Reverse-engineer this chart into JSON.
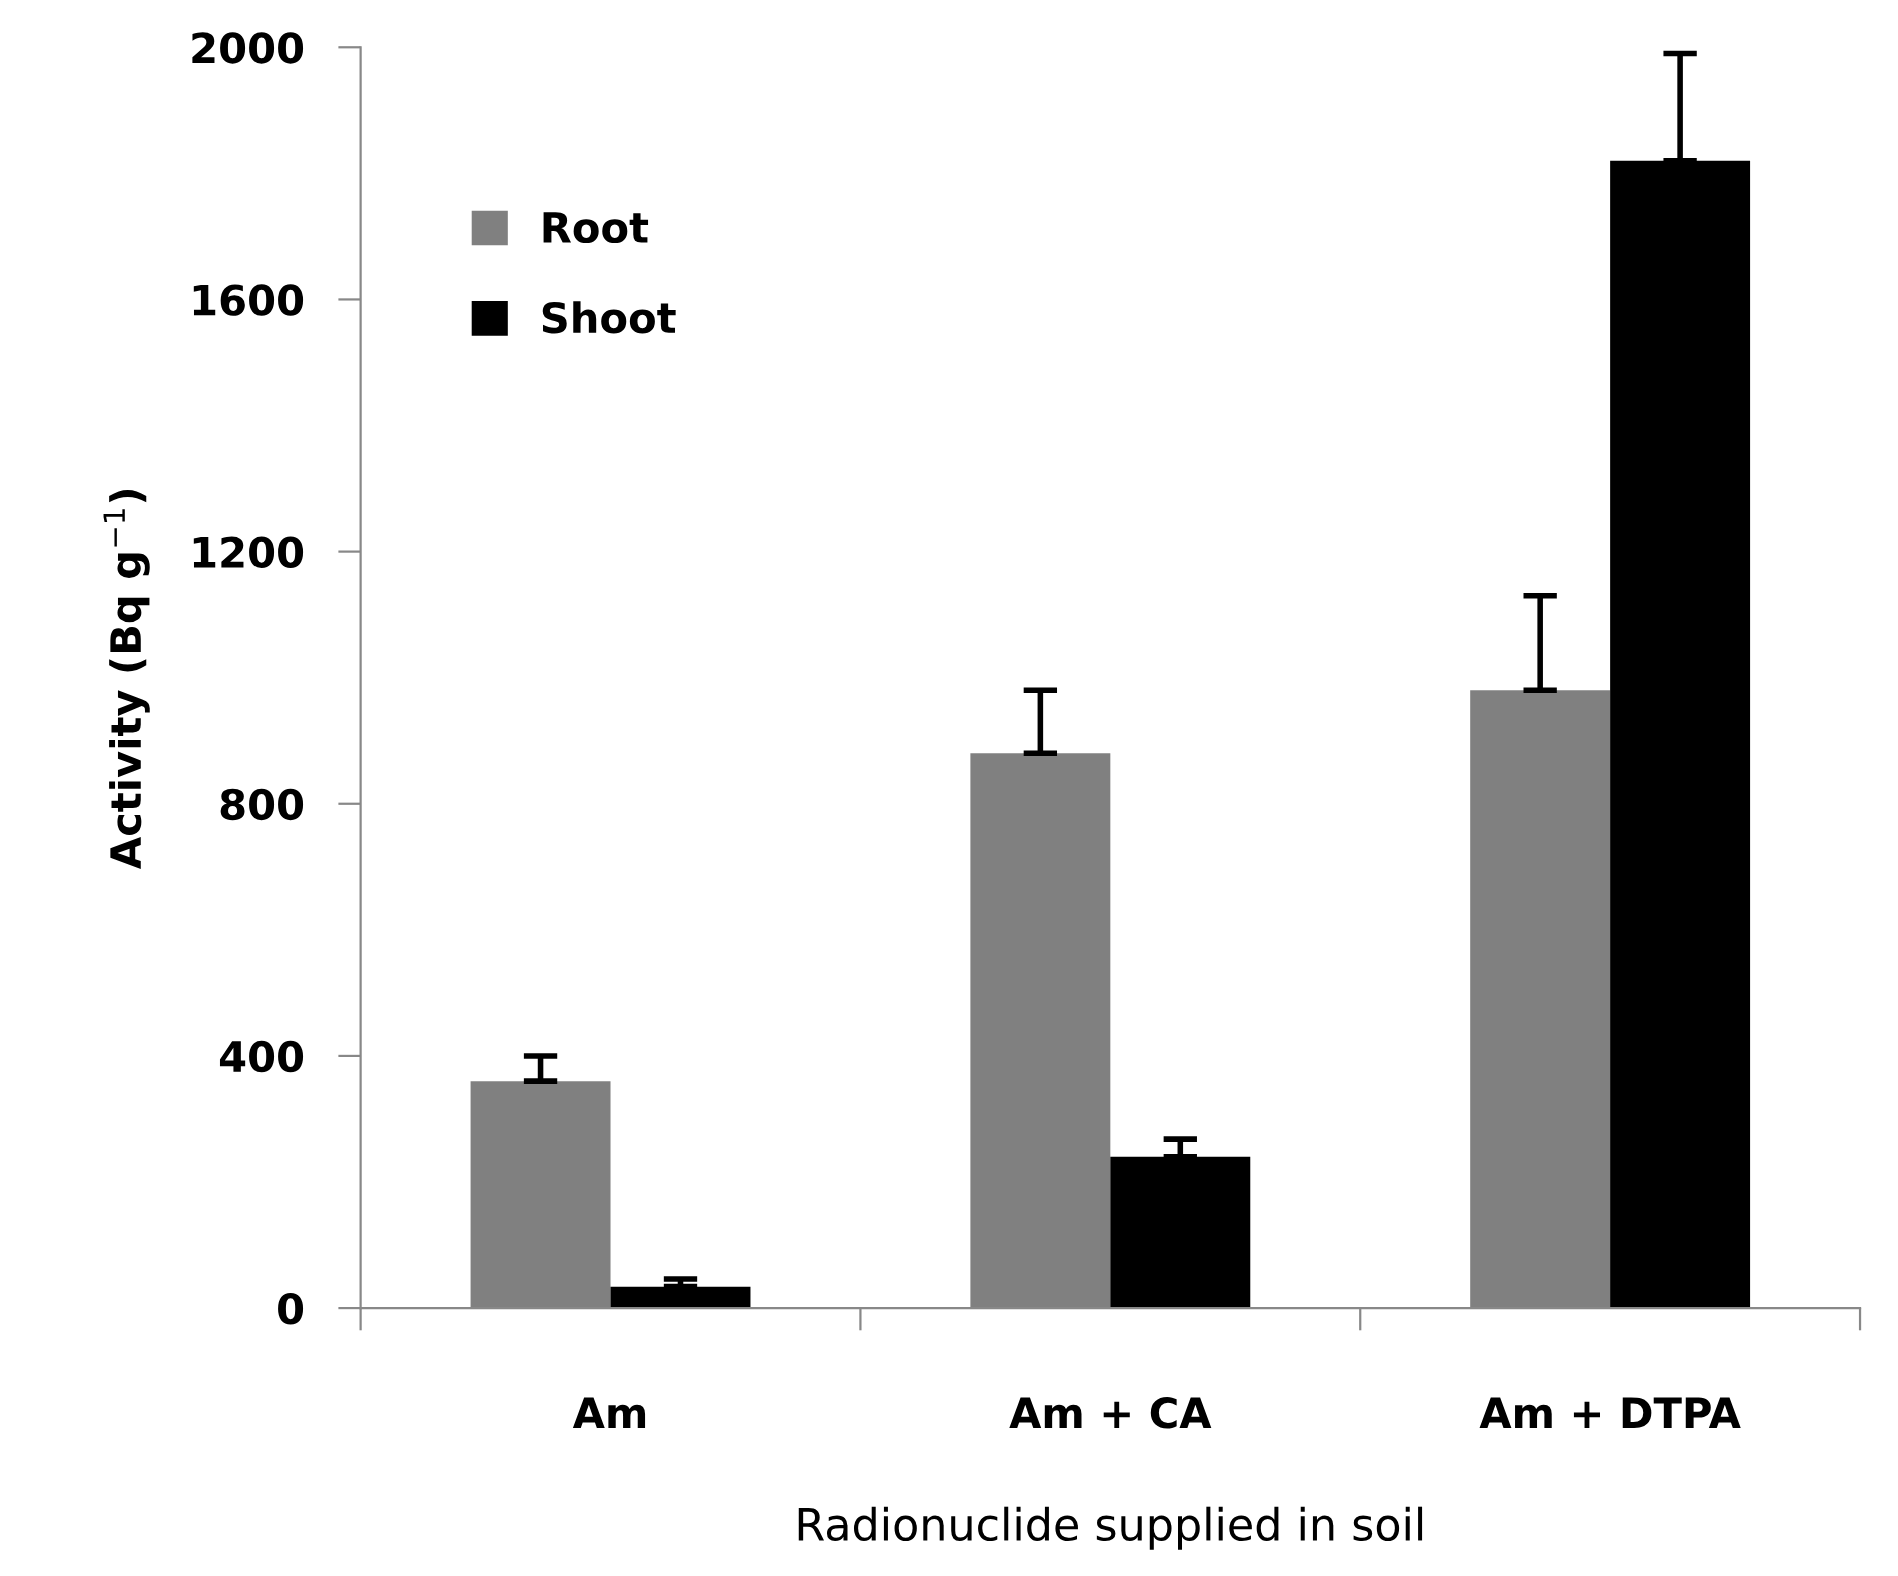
{
  "chart_data": {
    "type": "bar",
    "xlabel": "Radionuclide supplied in soil",
    "ylabel": "Activity (Bq g$^{−1}$)",
    "categories": [
      "Am",
      "Am + CA",
      "Am + DTPA"
    ],
    "series": [
      {
        "name": "Root",
        "color": "#808080",
        "values": [
          360,
          880,
          980
        ],
        "errors": [
          [
            360,
            400
          ],
          [
            880,
            980
          ],
          [
            980,
            1130
          ]
        ]
      },
      {
        "name": "Shoot",
        "color": "#000000",
        "values": [
          34,
          240,
          1820
        ],
        "errors": [
          [
            34,
            46
          ],
          [
            240,
            268
          ],
          [
            1820,
            1990
          ]
        ]
      }
    ],
    "ylim": [
      0,
      2000
    ],
    "yticks": [
      0,
      400,
      800,
      1200,
      1600,
      2000
    ],
    "grid": false,
    "legend": "top left"
  }
}
